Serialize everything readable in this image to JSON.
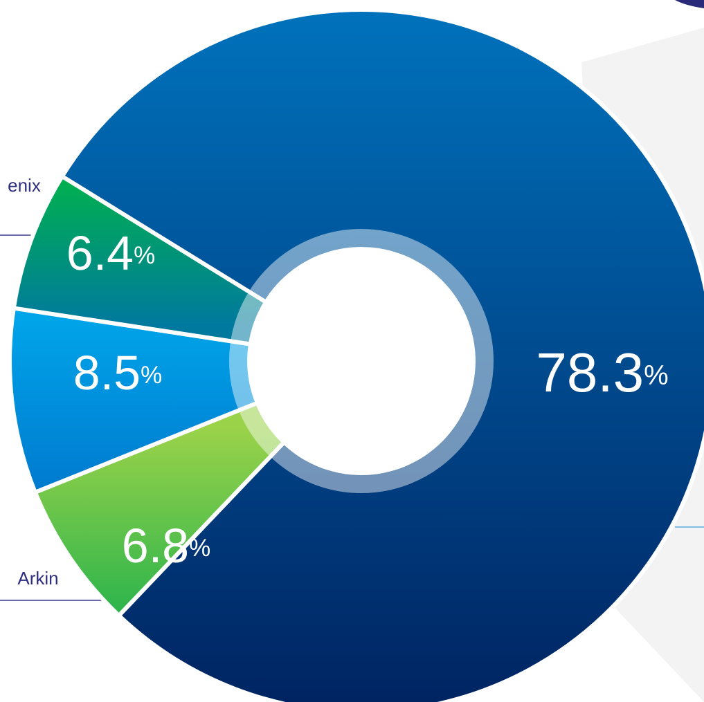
{
  "chart_data": {
    "type": "donut",
    "categories": [
      null,
      "Arkin",
      null,
      "enix"
    ],
    "values": [
      78.3,
      6.8,
      8.5,
      6.4
    ],
    "value_labels": [
      "78.3%",
      "6.8%",
      "8.5%",
      "6.4%"
    ],
    "colors": [
      [
        "#0072bc",
        "#002462"
      ],
      [
        "#9ad24a",
        "#13ad4c"
      ],
      [
        "#00aeef",
        "#0070c8"
      ],
      [
        "#00b04f",
        "#00799e"
      ]
    ]
  }
}
